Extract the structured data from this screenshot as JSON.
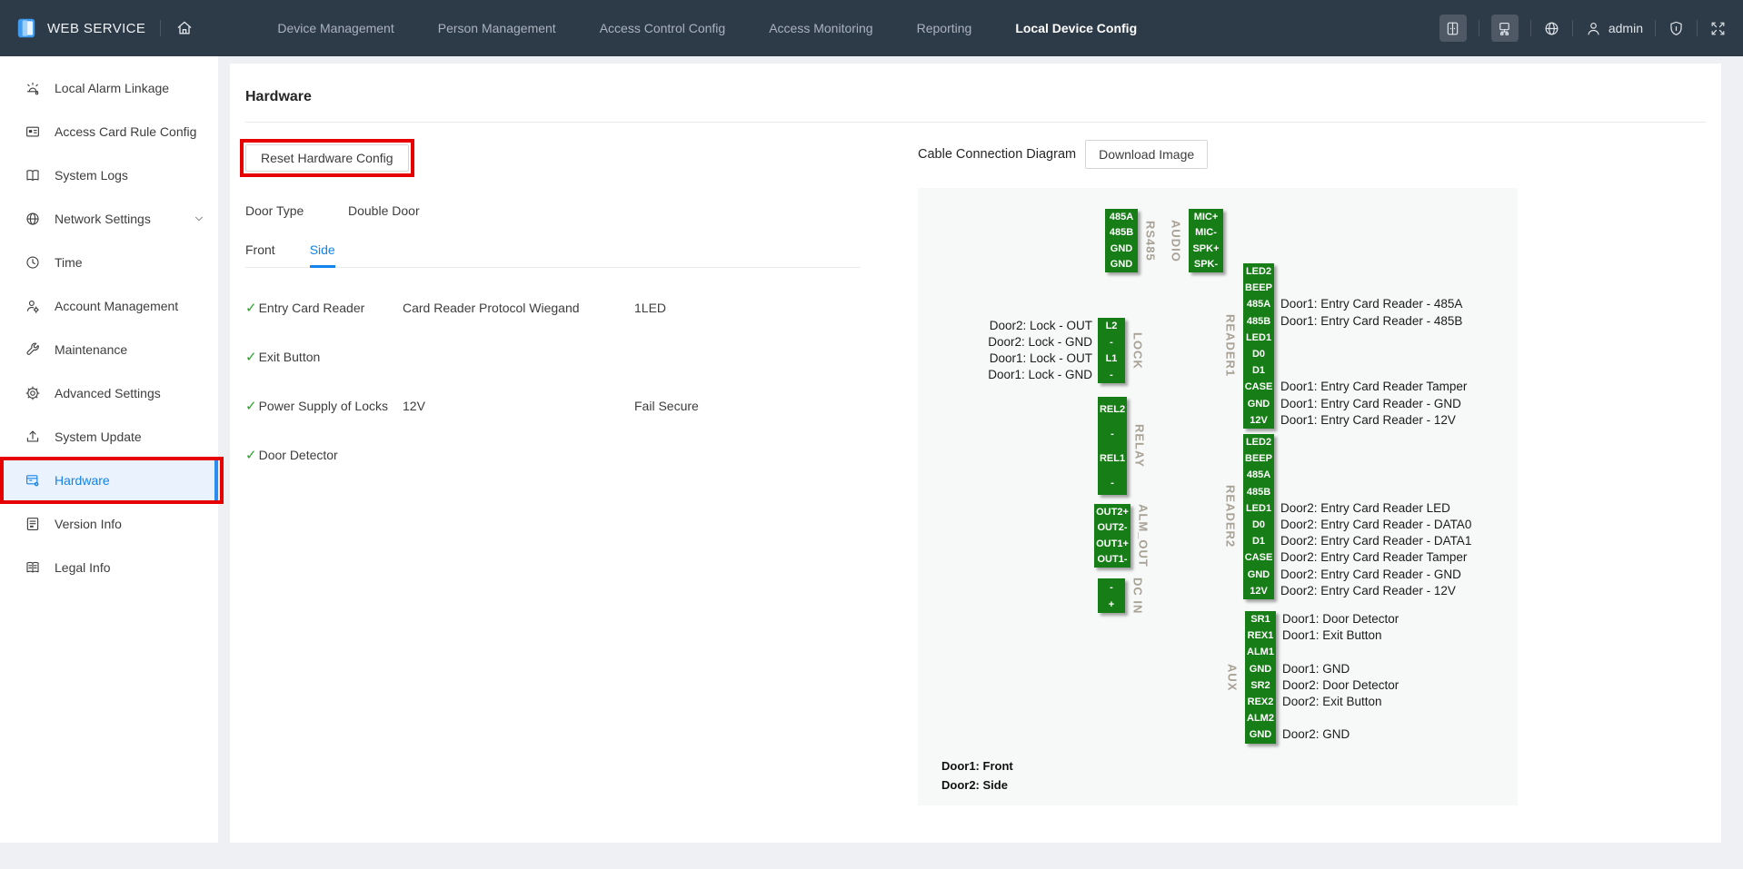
{
  "navbar": {
    "brand": "WEB SERVICE",
    "logo_icon": "door-logo-icon",
    "home_icon": "home-icon",
    "items": [
      {
        "label": "Device Management",
        "active": false
      },
      {
        "label": "Person Management",
        "active": false
      },
      {
        "label": "Access Control Config",
        "active": false
      },
      {
        "label": "Access Monitoring",
        "active": false
      },
      {
        "label": "Reporting",
        "active": false
      },
      {
        "label": "Local Device Config",
        "active": true
      }
    ],
    "right_icons": [
      "door-station-icon",
      "controller-icon",
      "globe-icon",
      "user-icon",
      "shield-icon",
      "fullscreen-icon"
    ],
    "user": "admin"
  },
  "sidebar": {
    "items": [
      {
        "label": "Local Alarm Linkage",
        "icon": "alarm-icon"
      },
      {
        "label": "Access Card Rule Config",
        "icon": "card-icon"
      },
      {
        "label": "System Logs",
        "icon": "logs-icon"
      },
      {
        "label": "Network Settings",
        "icon": "network-icon",
        "has_submenu": true
      },
      {
        "label": "Time",
        "icon": "clock-icon"
      },
      {
        "label": "Account Management",
        "icon": "account-icon"
      },
      {
        "label": "Maintenance",
        "icon": "wrench-icon"
      },
      {
        "label": "Advanced Settings",
        "icon": "advanced-icon"
      },
      {
        "label": "System Update",
        "icon": "update-icon"
      },
      {
        "label": "Hardware",
        "icon": "hardware-icon",
        "active": true,
        "annotated": true
      },
      {
        "label": "Version Info",
        "icon": "version-icon"
      },
      {
        "label": "Legal Info",
        "icon": "legal-icon"
      }
    ]
  },
  "main": {
    "title": "Hardware",
    "reset_button": "Reset Hardware Config",
    "door_type": {
      "label": "Door Type",
      "value": "Double Door"
    },
    "tabs": [
      {
        "label": "Front",
        "active": false
      },
      {
        "label": "Side",
        "active": true
      }
    ],
    "features": [
      {
        "name": "Entry Card Reader",
        "detail": "Card Reader Protocol Wiegand",
        "extra": "1LED"
      },
      {
        "name": "Exit Button",
        "detail": "",
        "extra": ""
      },
      {
        "name": "Power Supply of Locks",
        "detail": "12V",
        "extra": "Fail Secure"
      },
      {
        "name": "Door Detector",
        "detail": "",
        "extra": ""
      }
    ]
  },
  "diagram": {
    "title": "Cable Connection Diagram",
    "download_button": "Download Image",
    "connectors": [
      {
        "id": "RS485",
        "name": "RS485",
        "pins": [
          {
            "pin": "485A"
          },
          {
            "pin": "485B"
          },
          {
            "pin": "GND"
          },
          {
            "pin": "GND"
          }
        ]
      },
      {
        "id": "AUDIO",
        "name": "AUDIO",
        "pins": [
          {
            "pin": "MIC+"
          },
          {
            "pin": "MIC-"
          },
          {
            "pin": "SPK+"
          },
          {
            "pin": "SPK-"
          }
        ]
      },
      {
        "id": "READER1",
        "name": "READER1",
        "pins": [
          {
            "pin": "LED2"
          },
          {
            "pin": "BEEP"
          },
          {
            "pin": "485A",
            "right": "Door1: Entry Card Reader - 485A"
          },
          {
            "pin": "485B",
            "right": "Door1: Entry Card Reader - 485B"
          },
          {
            "pin": "LED1"
          },
          {
            "pin": "D0"
          },
          {
            "pin": "D1"
          },
          {
            "pin": "CASE",
            "right": "Door1: Entry Card Reader Tamper"
          },
          {
            "pin": "GND",
            "right": "Door1: Entry Card Reader - GND"
          },
          {
            "pin": "12V",
            "right": "Door1: Entry Card Reader - 12V"
          }
        ]
      },
      {
        "id": "LOCK",
        "name": "LOCK",
        "pins": [
          {
            "pin": "L2",
            "left": "Door2: Lock - OUT"
          },
          {
            "pin": "-",
            "left": "Door2: Lock - GND"
          },
          {
            "pin": "L1",
            "left": "Door1: Lock - OUT"
          },
          {
            "pin": "-",
            "left": "Door1: Lock - GND"
          }
        ]
      },
      {
        "id": "RELAY",
        "name": "RELAY",
        "pins": [
          {
            "pin": "REL2"
          },
          {
            "pin": "-"
          },
          {
            "pin": "REL1"
          },
          {
            "pin": "-"
          }
        ]
      },
      {
        "id": "ALM_OUT",
        "name": "ALM_OUT",
        "pins": [
          {
            "pin": "OUT2+"
          },
          {
            "pin": "OUT2-"
          },
          {
            "pin": "OUT1+"
          },
          {
            "pin": "OUT1-"
          }
        ]
      },
      {
        "id": "DC IN",
        "name": "DC IN",
        "pins": [
          {
            "pin": "-"
          },
          {
            "pin": "+"
          }
        ]
      },
      {
        "id": "READER2",
        "name": "READER2",
        "pins": [
          {
            "pin": "LED2"
          },
          {
            "pin": "BEEP"
          },
          {
            "pin": "485A"
          },
          {
            "pin": "485B"
          },
          {
            "pin": "LED1",
            "right": "Door2: Entry Card Reader LED"
          },
          {
            "pin": "D0",
            "right": "Door2: Entry Card Reader - DATA0"
          },
          {
            "pin": "D1",
            "right": "Door2: Entry Card Reader - DATA1"
          },
          {
            "pin": "CASE",
            "right": "Door2: Entry Card Reader Tamper"
          },
          {
            "pin": "GND",
            "right": "Door2: Entry Card Reader - GND"
          },
          {
            "pin": "12V",
            "right": "Door2: Entry Card Reader - 12V"
          }
        ]
      },
      {
        "id": "AUX",
        "name": "AUX",
        "pins": [
          {
            "pin": "SR1",
            "right": "Door1: Door Detector"
          },
          {
            "pin": "REX1",
            "right": "Door1: Exit Button"
          },
          {
            "pin": "ALM1"
          },
          {
            "pin": "GND",
            "right": "Door1: GND"
          },
          {
            "pin": "SR2",
            "right": "Door2: Door Detector"
          },
          {
            "pin": "REX2",
            "right": "Door2: Exit Button"
          },
          {
            "pin": "ALM2"
          },
          {
            "pin": "GND",
            "right": "Door2: GND"
          }
        ]
      }
    ],
    "notes": [
      "Door1: Front",
      "Door2: Side"
    ]
  },
  "colors": {
    "navbar_bg": "#2d3a48",
    "accent_blue": "#1583e9",
    "annotation_red": "#e60000",
    "pin_green": "#177d17",
    "check_green": "#27a327",
    "active_item_bg": "#e9f2fd"
  }
}
